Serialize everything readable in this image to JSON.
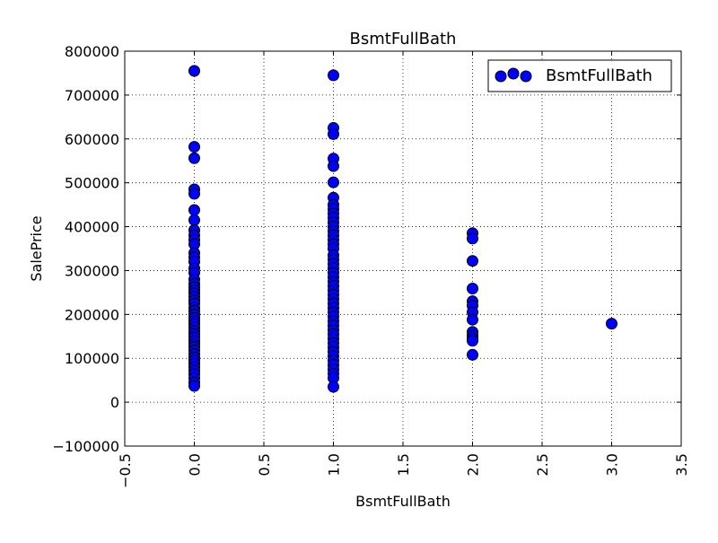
{
  "chart_data": {
    "type": "scatter",
    "title": "BsmtFullBath",
    "xlabel": "BsmtFullBath",
    "ylabel": "SalePrice",
    "xlim": [
      -0.5,
      3.5
    ],
    "ylim": [
      -100000,
      800000
    ],
    "x_ticks": [
      -0.5,
      0.0,
      0.5,
      1.0,
      1.5,
      2.0,
      2.5,
      3.0,
      3.5
    ],
    "x_tick_labels": [
      "−0.5",
      "0.0",
      "0.5",
      "1.0",
      "1.5",
      "2.0",
      "2.5",
      "3.0",
      "3.5"
    ],
    "y_ticks": [
      -100000,
      0,
      100000,
      200000,
      300000,
      400000,
      500000,
      600000,
      700000,
      800000
    ],
    "y_tick_labels": [
      "−100000",
      "0",
      "100000",
      "200000",
      "300000",
      "400000",
      "500000",
      "600000",
      "700000",
      "800000"
    ],
    "grid": true,
    "legend": {
      "position": "top-right"
    },
    "series": [
      {
        "name": "BsmtFullBath",
        "color": "#0000ff",
        "edge_color": "#000000",
        "points": [
          [
            0,
            755000
          ],
          [
            0,
            582000
          ],
          [
            0,
            556000
          ],
          [
            0,
            485000
          ],
          [
            0,
            475000
          ],
          [
            0,
            438000
          ],
          [
            0,
            415000
          ],
          [
            0,
            392000
          ],
          [
            0,
            380000
          ],
          [
            0,
            370000
          ],
          [
            0,
            360000
          ],
          [
            0,
            340000
          ],
          [
            0,
            330000
          ],
          [
            0,
            320000
          ],
          [
            0,
            305000
          ],
          [
            0,
            295000
          ],
          [
            0,
            280000
          ],
          [
            0,
            270000
          ],
          [
            0,
            262000
          ],
          [
            0,
            255000
          ],
          [
            0,
            248000
          ],
          [
            0,
            240000
          ],
          [
            0,
            232000
          ],
          [
            0,
            225000
          ],
          [
            0,
            215000
          ],
          [
            0,
            208000
          ],
          [
            0,
            200000
          ],
          [
            0,
            192000
          ],
          [
            0,
            185000
          ],
          [
            0,
            178000
          ],
          [
            0,
            170000
          ],
          [
            0,
            162000
          ],
          [
            0,
            155000
          ],
          [
            0,
            148000
          ],
          [
            0,
            140000
          ],
          [
            0,
            133000
          ],
          [
            0,
            126000
          ],
          [
            0,
            118000
          ],
          [
            0,
            110000
          ],
          [
            0,
            102000
          ],
          [
            0,
            95000
          ],
          [
            0,
            88000
          ],
          [
            0,
            80000
          ],
          [
            0,
            72000
          ],
          [
            0,
            64000
          ],
          [
            0,
            55000
          ],
          [
            0,
            45000
          ],
          [
            0,
            37000
          ],
          [
            1,
            745000
          ],
          [
            1,
            625000
          ],
          [
            1,
            611000
          ],
          [
            1,
            555000
          ],
          [
            1,
            538000
          ],
          [
            1,
            501000
          ],
          [
            1,
            466000
          ],
          [
            1,
            450000
          ],
          [
            1,
            440000
          ],
          [
            1,
            430000
          ],
          [
            1,
            420000
          ],
          [
            1,
            410000
          ],
          [
            1,
            400000
          ],
          [
            1,
            390000
          ],
          [
            1,
            380000
          ],
          [
            1,
            370000
          ],
          [
            1,
            360000
          ],
          [
            1,
            350000
          ],
          [
            1,
            335000
          ],
          [
            1,
            325000
          ],
          [
            1,
            315000
          ],
          [
            1,
            305000
          ],
          [
            1,
            295000
          ],
          [
            1,
            285000
          ],
          [
            1,
            275000
          ],
          [
            1,
            265000
          ],
          [
            1,
            255000
          ],
          [
            1,
            245000
          ],
          [
            1,
            235000
          ],
          [
            1,
            225000
          ],
          [
            1,
            215000
          ],
          [
            1,
            205000
          ],
          [
            1,
            195000
          ],
          [
            1,
            185000
          ],
          [
            1,
            175000
          ],
          [
            1,
            165000
          ],
          [
            1,
            155000
          ],
          [
            1,
            145000
          ],
          [
            1,
            135000
          ],
          [
            1,
            125000
          ],
          [
            1,
            115000
          ],
          [
            1,
            105000
          ],
          [
            1,
            95000
          ],
          [
            1,
            85000
          ],
          [
            1,
            75000
          ],
          [
            1,
            65000
          ],
          [
            1,
            55000
          ],
          [
            1,
            35000
          ],
          [
            2,
            385000
          ],
          [
            2,
            373000
          ],
          [
            2,
            322000
          ],
          [
            2,
            259000
          ],
          [
            2,
            230000
          ],
          [
            2,
            220000
          ],
          [
            2,
            205000
          ],
          [
            2,
            188000
          ],
          [
            2,
            160000
          ],
          [
            2,
            152000
          ],
          [
            2,
            145000
          ],
          [
            2,
            140000
          ],
          [
            2,
            108000
          ],
          [
            3,
            179000
          ]
        ]
      }
    ]
  }
}
